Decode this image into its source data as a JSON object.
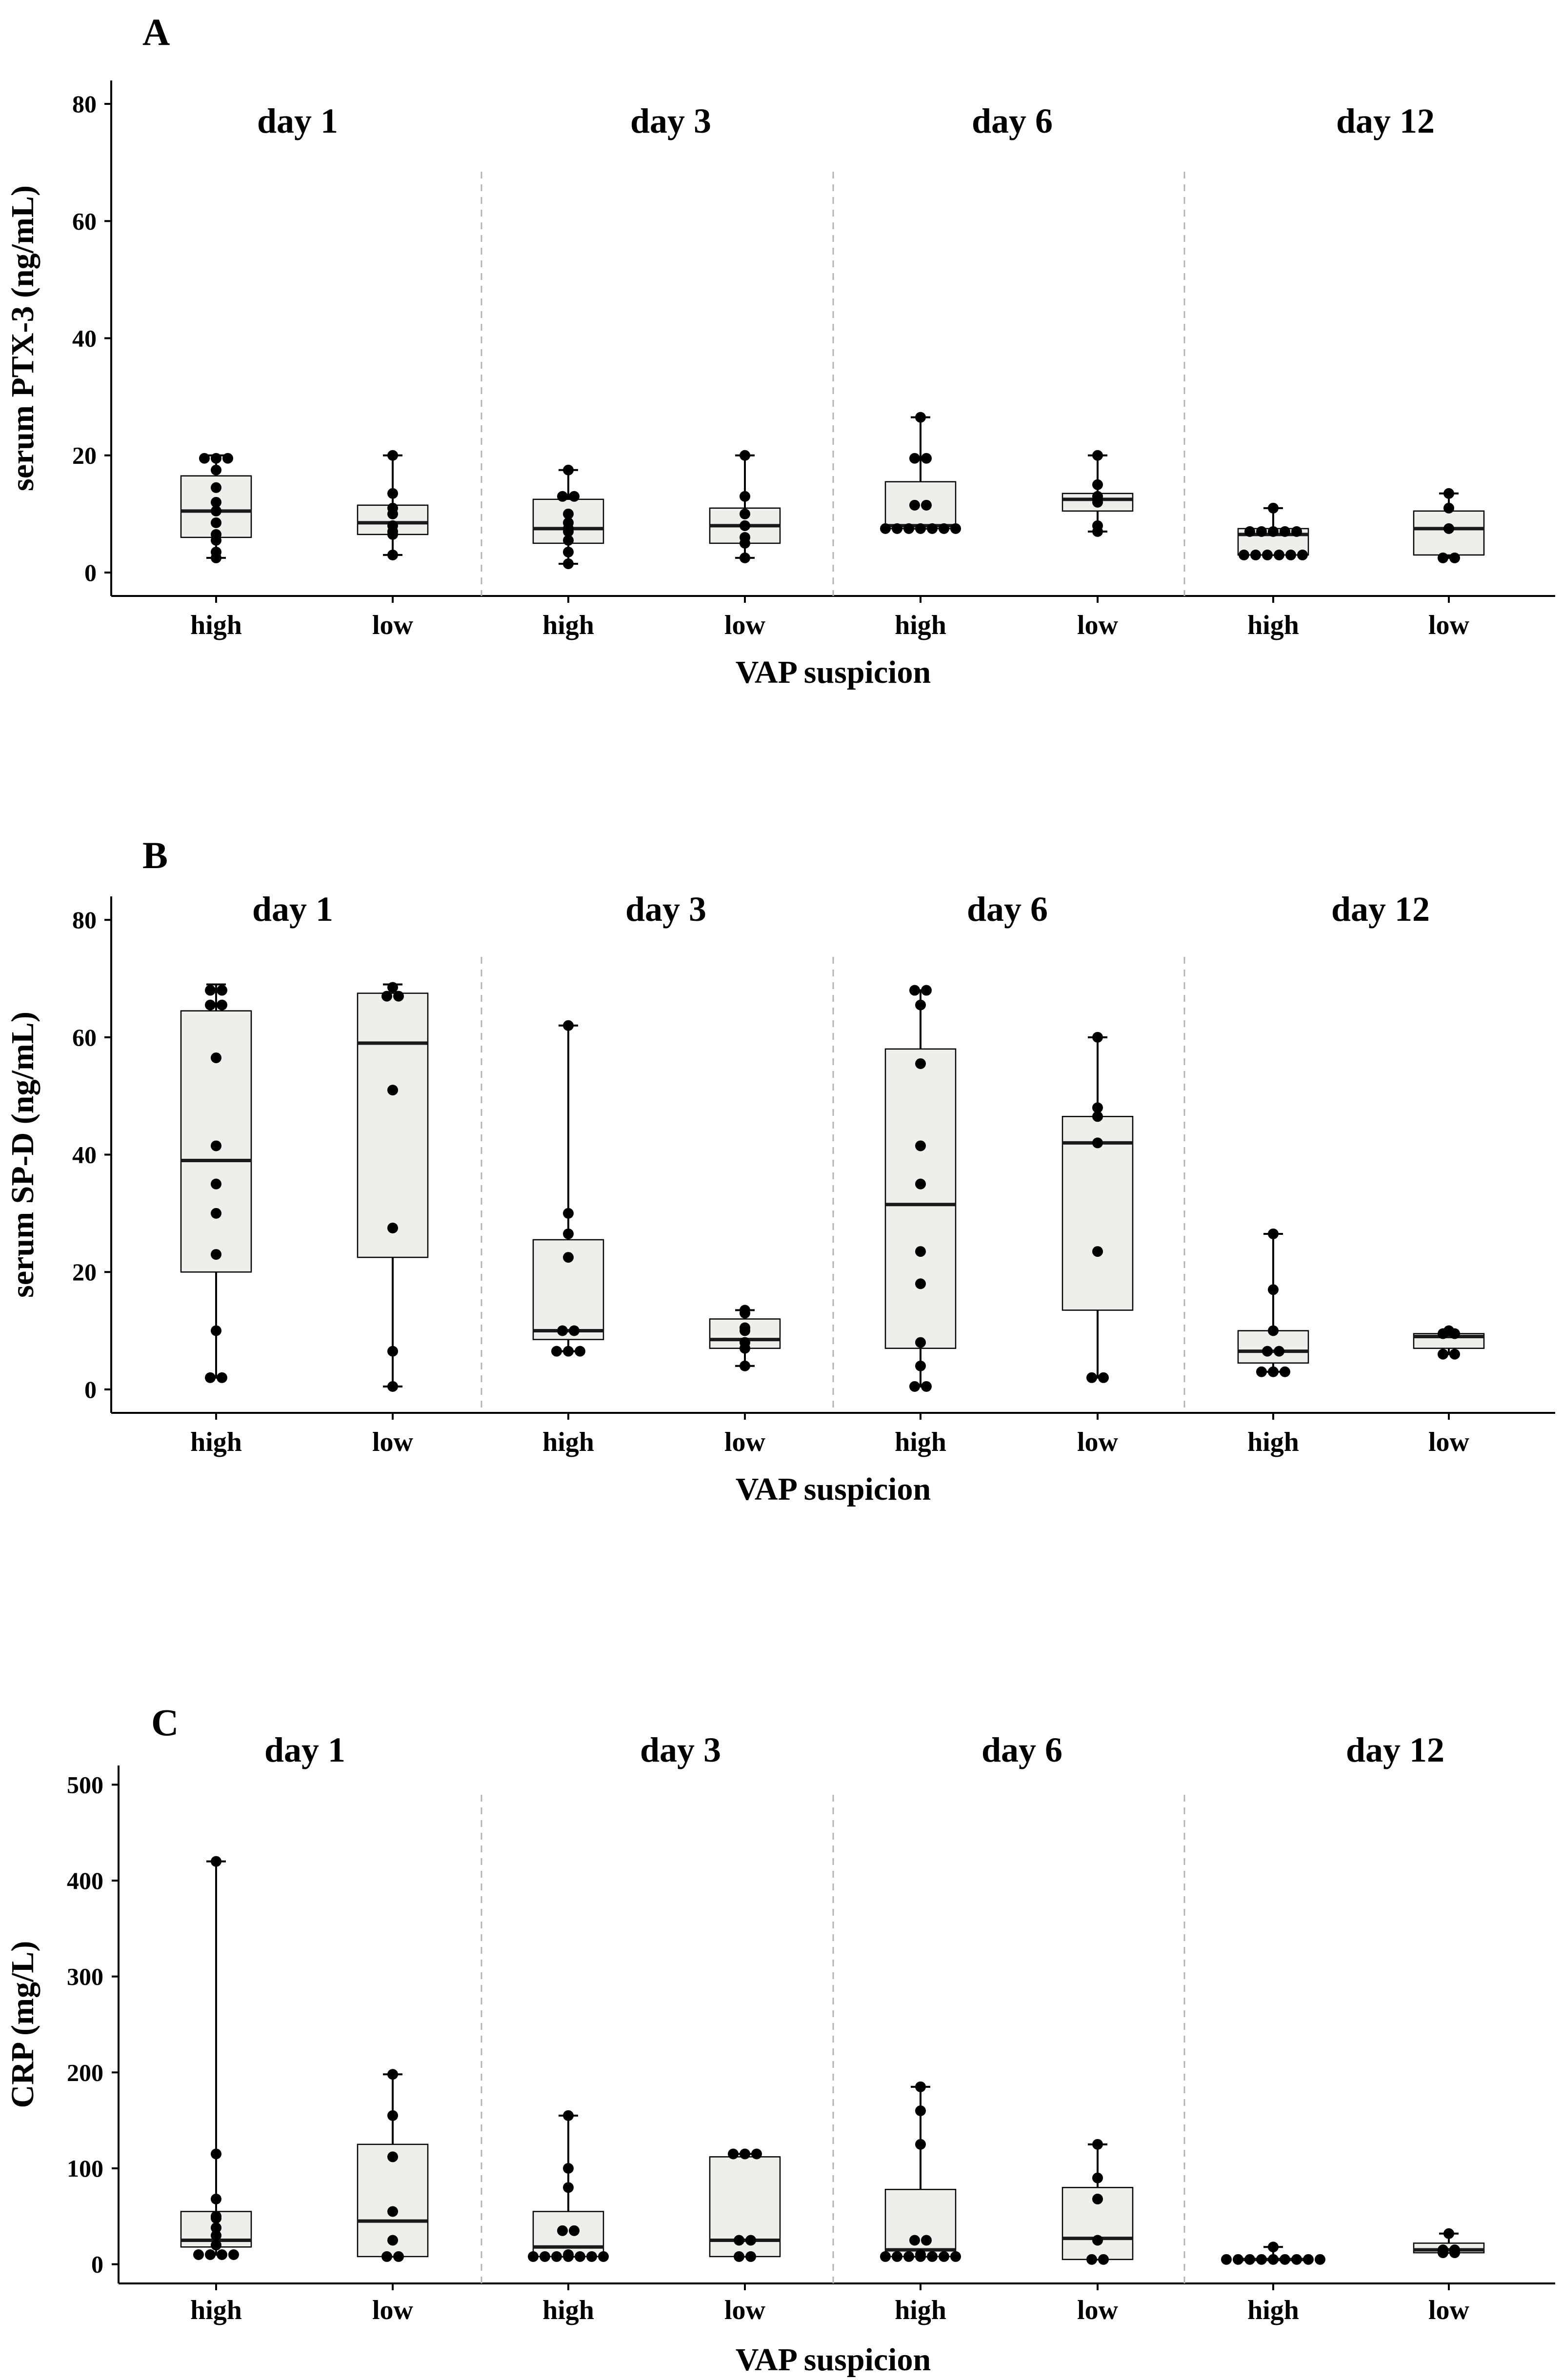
{
  "chart_data": [
    {
      "type": "boxplot",
      "panel": "A",
      "ylabel": "serum PTX-3  (ng/mL)",
      "xlabel": "VAP suspicion",
      "ylim": [
        -4,
        84
      ],
      "yticks": [
        0,
        20,
        40,
        60,
        80
      ],
      "tick_labels": [
        "0",
        "20",
        "40",
        "60",
        "80"
      ],
      "days": [
        {
          "label": "day 1",
          "groups": [
            {
              "name": "high",
              "q1": 6,
              "median": 10.5,
              "q3": 16.5,
              "whisker_low": 2.5,
              "whisker_high": 20,
              "points": [
                2.5,
                3.5,
                5.5,
                6.5,
                8.5,
                10.5,
                12,
                14.5,
                17.5,
                19.5,
                19.5,
                19.5
              ]
            },
            {
              "name": "low",
              "q1": 6.5,
              "median": 8.5,
              "q3": 11.5,
              "whisker_low": 3,
              "whisker_high": 20,
              "points": [
                3,
                6.5,
                7,
                8,
                10,
                11,
                13.5,
                20
              ]
            }
          ]
        },
        {
          "label": "day 3",
          "groups": [
            {
              "name": "high",
              "q1": 5,
              "median": 7.5,
              "q3": 12.5,
              "whisker_low": 1.5,
              "whisker_high": 17.5,
              "points": [
                1.5,
                3.5,
                5.5,
                7,
                7.5,
                8.5,
                10,
                13,
                13,
                17.5
              ]
            },
            {
              "name": "low",
              "q1": 5,
              "median": 8,
              "q3": 11,
              "whisker_low": 2.5,
              "whisker_high": 20,
              "points": [
                2.5,
                5,
                6,
                8,
                10,
                13,
                20
              ]
            }
          ]
        },
        {
          "label": "day 6",
          "groups": [
            {
              "name": "high",
              "q1": 7.5,
              "median": 8,
              "q3": 15.5,
              "whisker_low": 7.5,
              "whisker_high": 26.5,
              "points": [
                7.5,
                7.5,
                7.5,
                7.5,
                7.5,
                7.5,
                7.5,
                11.5,
                11.5,
                19.5,
                19.5,
                26.5
              ]
            },
            {
              "name": "low",
              "q1": 10.5,
              "median": 12.5,
              "q3": 13.5,
              "whisker_low": 7,
              "whisker_high": 20,
              "points": [
                7,
                8,
                12,
                12.5,
                13,
                15,
                20
              ]
            }
          ]
        },
        {
          "label": "day 12",
          "groups": [
            {
              "name": "high",
              "q1": 3,
              "median": 6.5,
              "q3": 7.5,
              "whisker_low": 3,
              "whisker_high": 11,
              "points": [
                3,
                3,
                3,
                3,
                3,
                3,
                7,
                7,
                7,
                7,
                7,
                11
              ]
            },
            {
              "name": "low",
              "q1": 3,
              "median": 7.5,
              "q3": 10.5,
              "whisker_low": 2.5,
              "whisker_high": 13.5,
              "points": [
                2.5,
                2.5,
                7.5,
                11,
                13.5
              ]
            }
          ]
        }
      ]
    },
    {
      "type": "boxplot",
      "panel": "B",
      "ylabel": "serum SP-D  (ng/mL)",
      "xlabel": "VAP suspicion",
      "ylim": [
        -4,
        84
      ],
      "yticks": [
        0,
        20,
        40,
        60,
        80
      ],
      "tick_labels": [
        "0",
        "20",
        "40",
        "60",
        "80"
      ],
      "days": [
        {
          "label": "day 1",
          "groups": [
            {
              "name": "high",
              "q1": 20,
              "median": 39,
              "q3": 64.5,
              "whisker_low": 2,
              "whisker_high": 69,
              "points": [
                2,
                2,
                10,
                23,
                30,
                35,
                41.5,
                56.5,
                65.5,
                65.5,
                68,
                68
              ]
            },
            {
              "name": "low",
              "q1": 22.5,
              "median": 59,
              "q3": 67.5,
              "whisker_low": 0.5,
              "whisker_high": 69,
              "points": [
                0.5,
                6.5,
                27.5,
                51,
                67,
                67,
                68.5
              ]
            }
          ]
        },
        {
          "label": "day 3",
          "groups": [
            {
              "name": "high",
              "q1": 8.5,
              "median": 10,
              "q3": 25.5,
              "whisker_low": 6.5,
              "whisker_high": 62,
              "points": [
                6.5,
                6.5,
                6.5,
                10,
                10,
                22.5,
                26.5,
                30,
                62
              ]
            },
            {
              "name": "low",
              "q1": 7,
              "median": 8.5,
              "q3": 12,
              "whisker_low": 4,
              "whisker_high": 13.5,
              "points": [
                4,
                7,
                8,
                10,
                10.5,
                13,
                13.5
              ]
            }
          ]
        },
        {
          "label": "day 6",
          "groups": [
            {
              "name": "high",
              "q1": 7,
              "median": 31.5,
              "q3": 58,
              "whisker_low": 0.5,
              "whisker_high": 68,
              "points": [
                0.5,
                0.5,
                4,
                8,
                18,
                23.5,
                35,
                41.5,
                55.5,
                65.5,
                68,
                68
              ]
            },
            {
              "name": "low",
              "q1": 13.5,
              "median": 42,
              "q3": 46.5,
              "whisker_low": 2,
              "whisker_high": 60,
              "points": [
                2,
                2,
                23.5,
                42,
                46.5,
                48,
                60
              ]
            }
          ]
        },
        {
          "label": "day 12",
          "groups": [
            {
              "name": "high",
              "q1": 4.5,
              "median": 6.5,
              "q3": 10,
              "whisker_low": 3,
              "whisker_high": 26.5,
              "points": [
                3,
                3,
                3,
                6.5,
                6.5,
                10,
                17,
                26.5
              ]
            },
            {
              "name": "low",
              "q1": 7,
              "median": 9,
              "q3": 9.5,
              "whisker_low": 6,
              "whisker_high": 10,
              "points": [
                6,
                6,
                9.5,
                9.5,
                10
              ]
            }
          ]
        }
      ]
    },
    {
      "type": "boxplot",
      "panel": "C",
      "ylabel": "CRP  (mg/L)",
      "xlabel": "VAP suspicion",
      "ylim": [
        -20,
        520
      ],
      "yticks": [
        0,
        100,
        200,
        300,
        400,
        500
      ],
      "tick_labels": [
        "0",
        "100",
        "200",
        "300",
        "400",
        "500"
      ],
      "days": [
        {
          "label": "day 1",
          "groups": [
            {
              "name": "high",
              "q1": 18,
              "median": 25,
              "q3": 55,
              "whisker_low": 10,
              "whisker_high": 420,
              "points": [
                10,
                10,
                10,
                10,
                20,
                30,
                38,
                48,
                50,
                68,
                115,
                420
              ]
            },
            {
              "name": "low",
              "q1": 8,
              "median": 45,
              "q3": 125,
              "whisker_low": 8,
              "whisker_high": 198,
              "points": [
                8,
                8,
                25,
                55,
                112,
                155,
                198
              ]
            }
          ]
        },
        {
          "label": "day 3",
          "groups": [
            {
              "name": "high",
              "q1": 8,
              "median": 18,
              "q3": 55,
              "whisker_low": 8,
              "whisker_high": 155,
              "points": [
                8,
                8,
                8,
                8,
                8,
                8,
                8,
                10,
                35,
                35,
                80,
                100,
                155
              ]
            },
            {
              "name": "low",
              "q1": 8,
              "median": 25,
              "q3": 112,
              "whisker_low": 8,
              "whisker_high": 115,
              "points": [
                8,
                8,
                25,
                25,
                115,
                115,
                115
              ]
            }
          ]
        },
        {
          "label": "day 6",
          "groups": [
            {
              "name": "high",
              "q1": 8,
              "median": 15,
              "q3": 78,
              "whisker_low": 8,
              "whisker_high": 185,
              "points": [
                8,
                8,
                8,
                8,
                8,
                8,
                8,
                10,
                25,
                25,
                125,
                160,
                185
              ]
            },
            {
              "name": "low",
              "q1": 5,
              "median": 27,
              "q3": 80,
              "whisker_low": 5,
              "whisker_high": 125,
              "points": [
                5,
                5,
                25,
                68,
                90,
                125
              ]
            }
          ]
        },
        {
          "label": "day 12",
          "groups": [
            {
              "name": "high",
              "q1": 5,
              "median": 5,
              "q3": 5,
              "whisker_low": 5,
              "whisker_high": 18,
              "points": [
                5,
                5,
                5,
                5,
                5,
                5,
                5,
                5,
                5,
                18
              ]
            },
            {
              "name": "low",
              "q1": 12,
              "median": 15,
              "q3": 22,
              "whisker_low": 12,
              "whisker_high": 32,
              "points": [
                12,
                12,
                15,
                15,
                32
              ]
            }
          ]
        }
      ]
    }
  ]
}
